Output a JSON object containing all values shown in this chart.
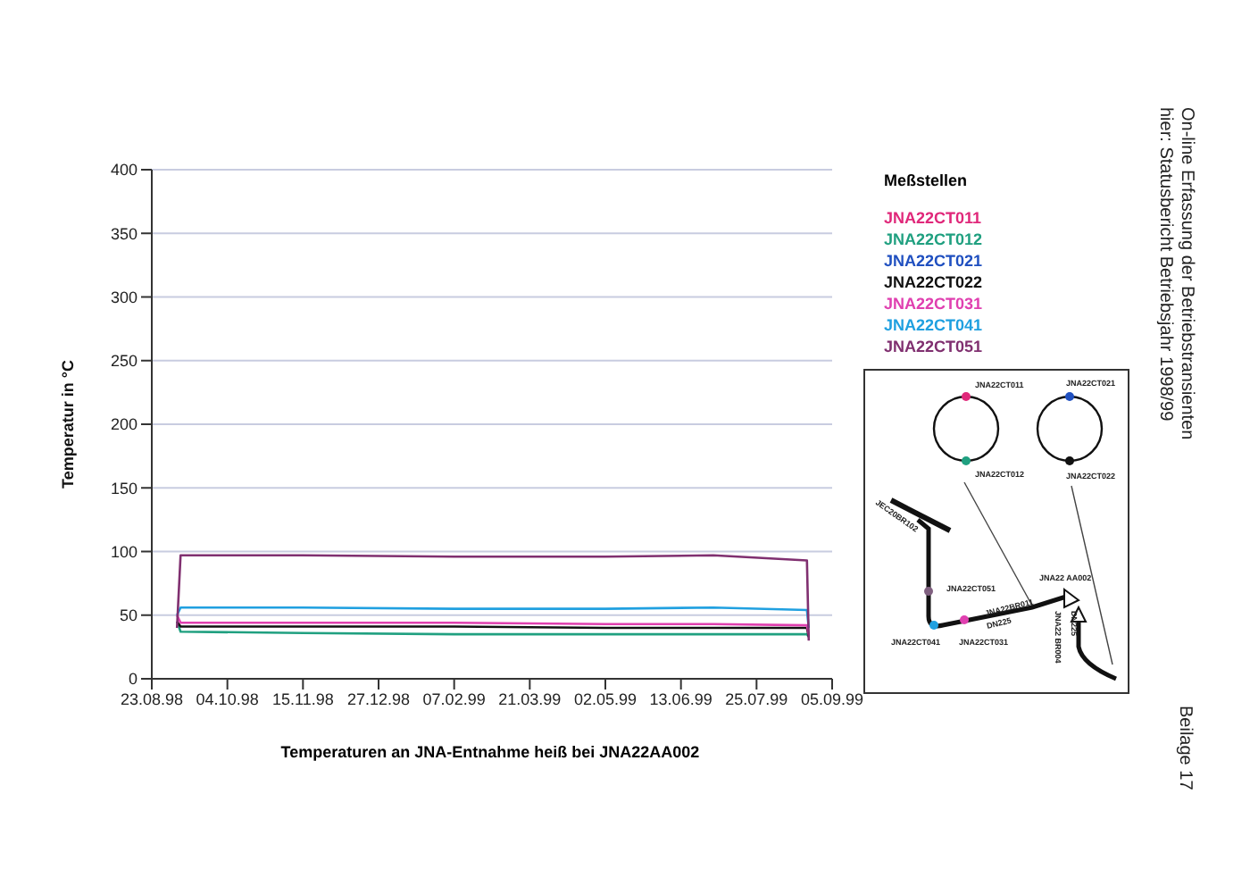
{
  "chart_data": {
    "type": "line",
    "title": "On-line Erfassung der Betriebstransienten",
    "subtitle": "hier: Statusbericht Betriebsjahr 1998/99",
    "xlabel": "Temperaturen an JNA-Entnahme heiß bei JNA22AA002",
    "ylabel": "Temperatur in °C",
    "legend_title": "Meßstellen",
    "legend": "right",
    "grid": "y",
    "marker": "none",
    "line_style": "solid",
    "x": [
      "1998-09-06",
      "1998-09-08",
      "1998-11-15",
      "1999-02-07",
      "1999-05-02",
      "1999-07-01",
      "1999-08-22",
      "1999-08-23"
    ],
    "series": [
      {
        "name": "JNA22CT011",
        "color": "#e0287a",
        "values": [
          null,
          null,
          null,
          null,
          null,
          null,
          null,
          null
        ]
      },
      {
        "name": "JNA22CT012",
        "color": "#20a080",
        "values": [
          45,
          37,
          36,
          35,
          35,
          35,
          35,
          33
        ]
      },
      {
        "name": "JNA22CT021",
        "color": "#2050c0",
        "values": [
          null,
          null,
          null,
          null,
          null,
          null,
          null,
          null
        ]
      },
      {
        "name": "JNA22CT022",
        "color": "#101010",
        "values": [
          45,
          41,
          41,
          41,
          40,
          40,
          40,
          33
        ]
      },
      {
        "name": "JNA22CT031",
        "color": "#e040b0",
        "values": [
          50,
          44,
          44,
          44,
          43,
          43,
          42,
          35
        ]
      },
      {
        "name": "JNA22CT041",
        "color": "#20a0e0",
        "values": [
          50,
          56,
          56,
          55,
          55,
          56,
          54,
          40
        ]
      },
      {
        "name": "JNA22CT051",
        "color": "#803070",
        "values": [
          40,
          97,
          97,
          96,
          96,
          97,
          93,
          30
        ]
      }
    ],
    "xlim": [
      "1998-08-23",
      "1999-09-05"
    ],
    "xticks": [
      {
        "value": "1998-08-23",
        "label": "23.08.98"
      },
      {
        "value": "1998-10-04",
        "label": "04.10.98"
      },
      {
        "value": "1998-11-15",
        "label": "15.11.98"
      },
      {
        "value": "1998-12-27",
        "label": "27.12.98"
      },
      {
        "value": "1999-02-07",
        "label": "07.02.99"
      },
      {
        "value": "1999-03-21",
        "label": "21.03.99"
      },
      {
        "value": "1999-05-02",
        "label": "02.05.99"
      },
      {
        "value": "1999-06-13",
        "label": "13.06.99"
      },
      {
        "value": "1999-07-25",
        "label": "25.07.99"
      },
      {
        "value": "1999-09-05",
        "label": "05.09.99"
      }
    ],
    "ylim": [
      0,
      400
    ],
    "yticks": [
      0,
      50,
      100,
      150,
      200,
      250,
      300,
      350,
      400
    ],
    "annotations": [
      "Beilage 17",
      "JNA22CT011",
      "JNA22CT021",
      "JNA22CT012",
      "JNA22CT022",
      "JEC20BR102",
      "JNA22CT051",
      "JNA22CT041",
      "JNA22CT031",
      "JNA22BR011",
      "DN225",
      "JNA22 AA002",
      "JNA22 BR004",
      "DN225"
    ]
  }
}
